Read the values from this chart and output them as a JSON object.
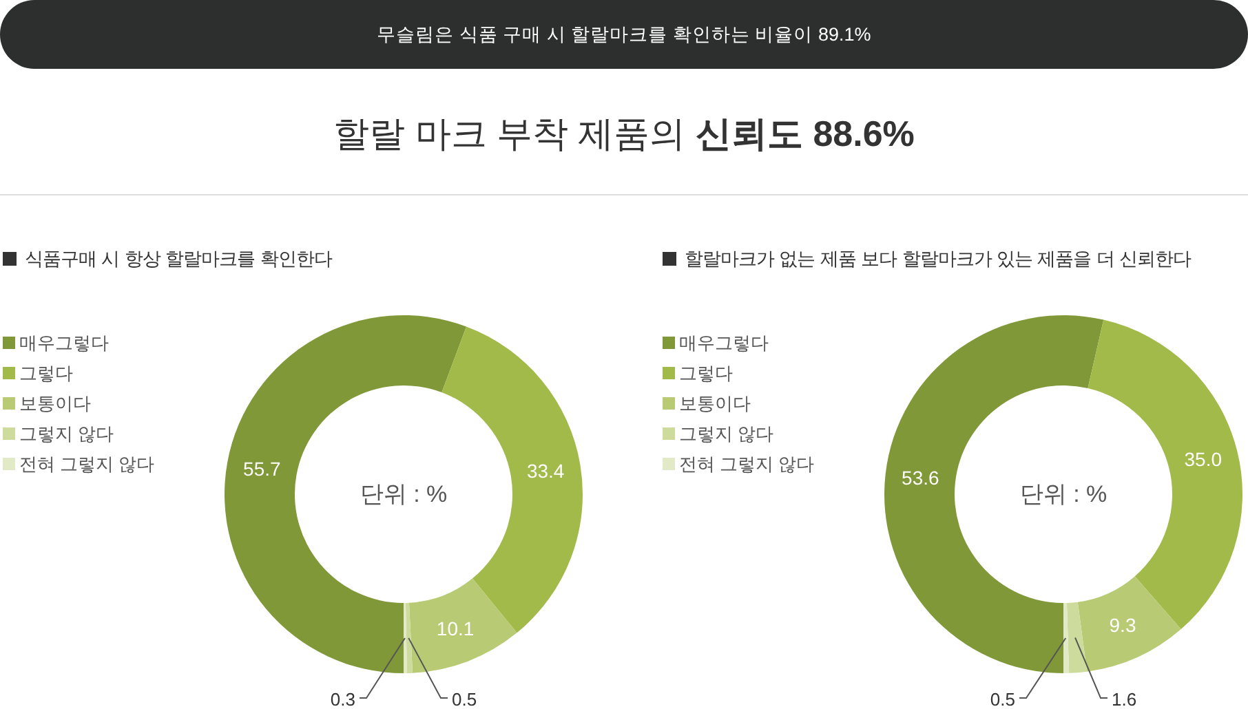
{
  "chart_data": [
    {
      "type": "other",
      "title": "무슬림은 식품 구매 시 할랄마크를 확인하는 비율이 89.1%",
      "subtitle": "할랄 마크 부착 제품의 신뢰도 88.6%"
    },
    {
      "type": "donut",
      "title": "식품구매 시 항상 할랄마크를 확인한다",
      "categories": [
        "매우그렇다",
        "그렇다",
        "보통이다",
        "그렇지 않다",
        "전혀 그렇지 않다"
      ],
      "values": [
        55.7,
        33.4,
        10.1,
        0.5,
        0.3
      ],
      "colors": [
        "#809838",
        "#a2ba4a",
        "#b8cb74",
        "#cddc9d",
        "#e1e9c7"
      ],
      "value_labels": [
        "55.7",
        "33.4",
        "10.1",
        "0.5",
        "0.3"
      ],
      "legend": "top left",
      "annotations": [
        "단위 : %"
      ]
    },
    {
      "type": "donut",
      "title": "할랄마크가 없는 제품 보다 할랄마크가 있는 제품을 더 신뢰한다",
      "categories": [
        "매우그렇다",
        "그렇다",
        "보통이다",
        "그렇지 않다",
        "전혀 그렇지 않다"
      ],
      "values": [
        53.6,
        35.0,
        9.3,
        1.6,
        0.5
      ],
      "colors": [
        "#809838",
        "#a2ba4a",
        "#b8cb74",
        "#cddc9d",
        "#e1e9c7"
      ],
      "value_labels": [
        "53.6",
        "35.0",
        "9.3",
        "1.6",
        "0.5"
      ],
      "legend": "top left",
      "annotations": [
        "단위 : %"
      ]
    }
  ]
}
